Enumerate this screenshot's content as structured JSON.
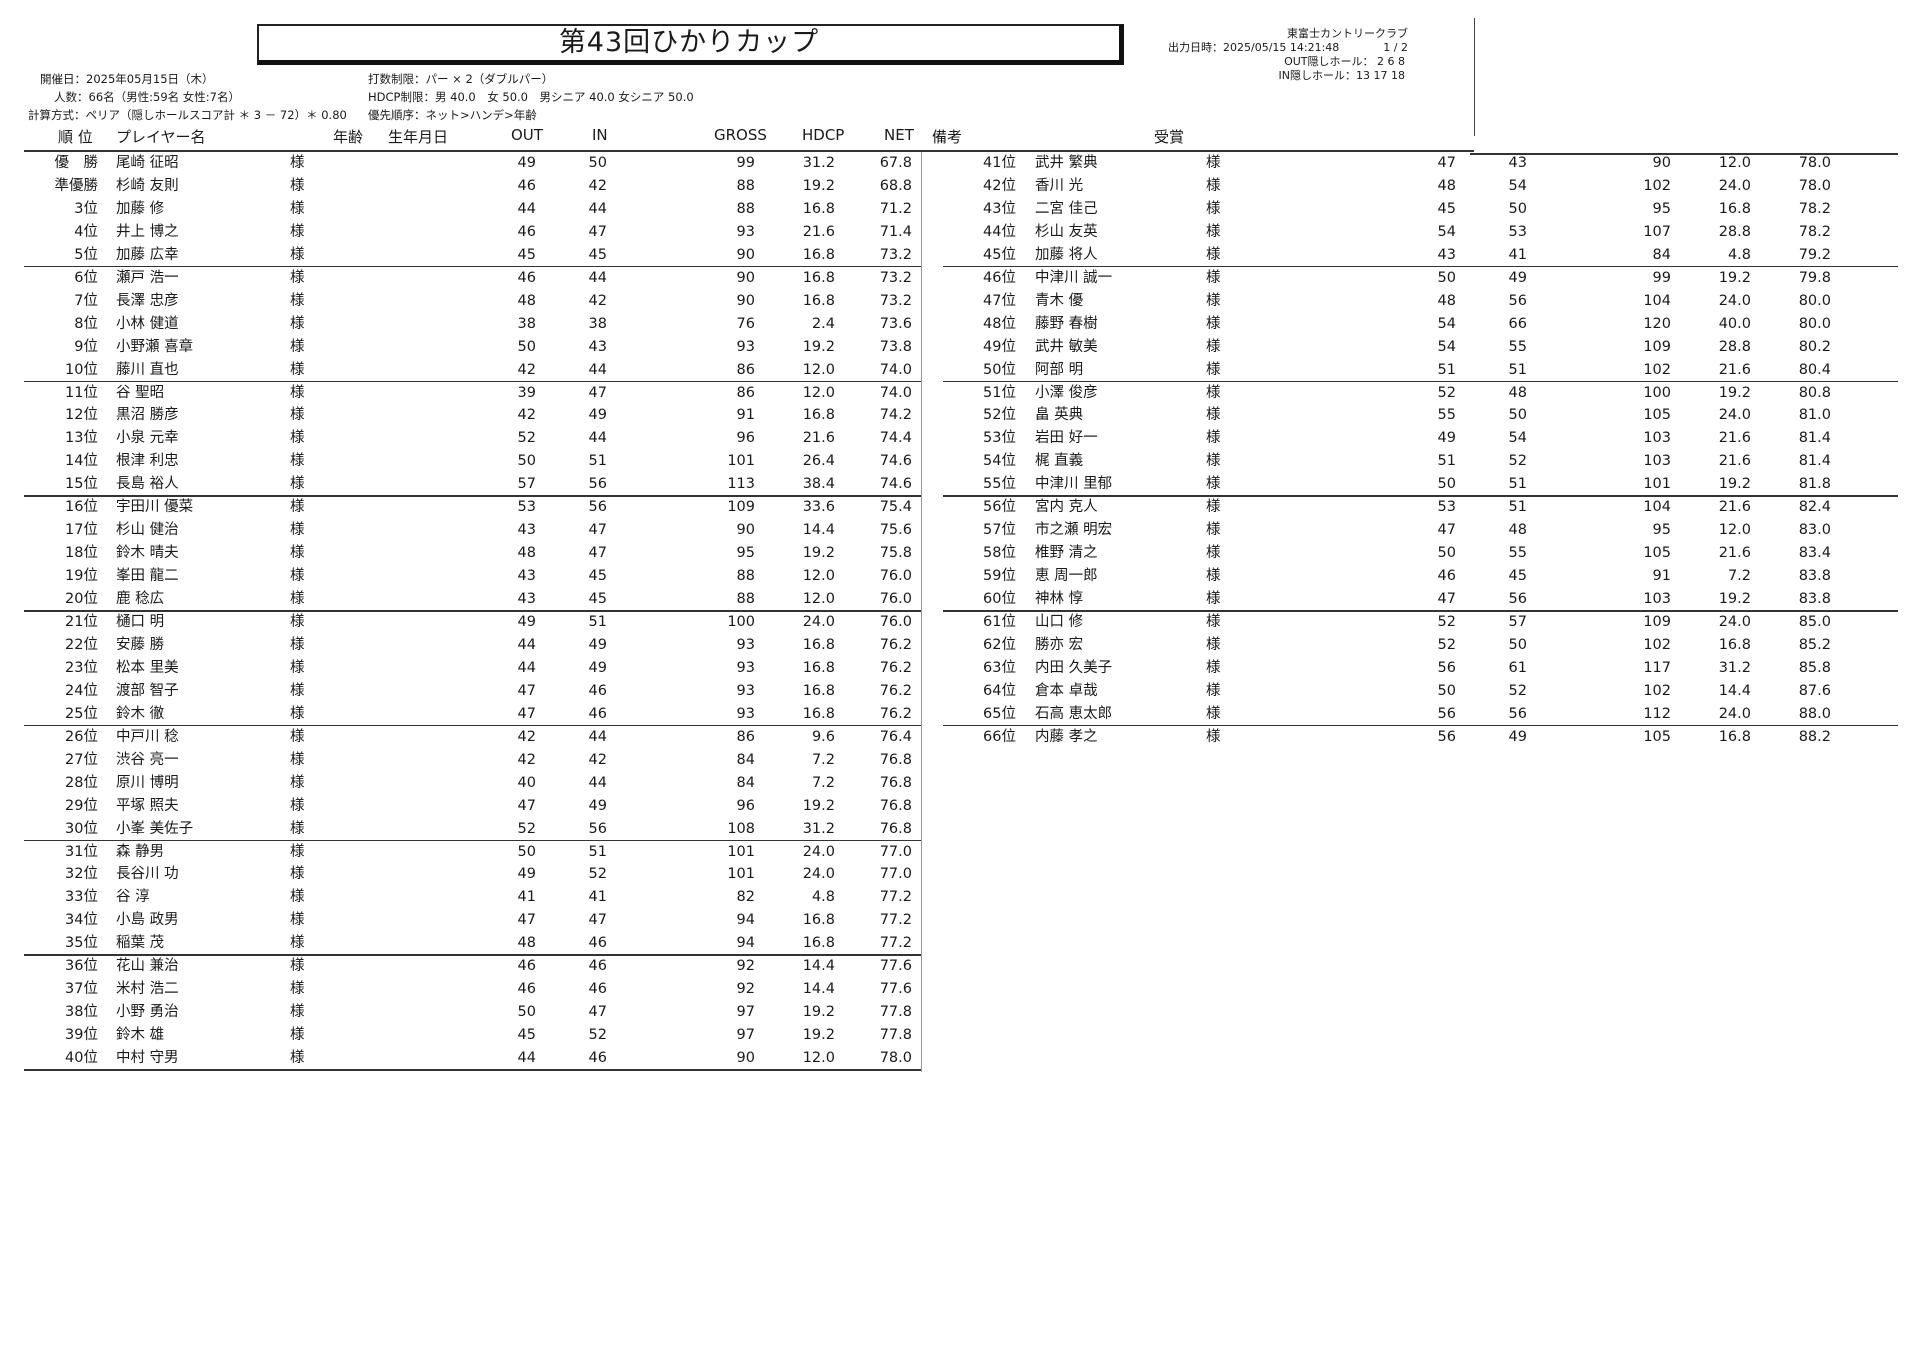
{
  "title": "第43回ひかりカップ",
  "info": {
    "date": "開催日：2025年05月15日（木）",
    "count": "人数：66名（男性:59名 女性:7名）",
    "calc": "計算方式：ペリア（隠しホールスコア計 ＊ 3 － 72）＊ 0.80",
    "stroke_limit": "打数制限：パー × 2（ダブルパー）",
    "hdcp_limit": "HDCP制限：男 40.0　女 50.0　男シニア 40.0 女シニア 50.0",
    "priority": "優先順序：ネット>ハンデ>年齢"
  },
  "club": {
    "name": "東富士カントリークラブ",
    "output_time": "出力日時：2025/05/15 14:21:48",
    "page": "1 / 2",
    "out_hidden": "OUT隠しホール：  2   6   8",
    "in_hidden": "IN隠しホール：13  17  18"
  },
  "columns": {
    "rank": "順 位",
    "player": "プレイヤー名",
    "age": "年齢",
    "birth": "生年月日",
    "out": "OUT",
    "in": "IN",
    "gross": "GROSS",
    "hdcp": "HDCP",
    "net": "NET",
    "remarks": "備考",
    "award": "受賞"
  },
  "honorific": "様",
  "players": [
    [
      "優　勝",
      "尾崎 征昭",
      "49",
      "50",
      "99",
      "31.2",
      "67.8"
    ],
    [
      "準優勝",
      "杉崎 友則",
      "46",
      "42",
      "88",
      "19.2",
      "68.8"
    ],
    [
      "3位",
      "加藤 修",
      "44",
      "44",
      "88",
      "16.8",
      "71.2"
    ],
    [
      "4位",
      "井上 博之",
      "46",
      "47",
      "93",
      "21.6",
      "71.4"
    ],
    [
      "5位",
      "加藤 広幸",
      "45",
      "45",
      "90",
      "16.8",
      "73.2"
    ],
    [
      "6位",
      "瀬戸 浩一",
      "46",
      "44",
      "90",
      "16.8",
      "73.2"
    ],
    [
      "7位",
      "長澤 忠彦",
      "48",
      "42",
      "90",
      "16.8",
      "73.2"
    ],
    [
      "8位",
      "小林 健道",
      "38",
      "38",
      "76",
      "2.4",
      "73.6"
    ],
    [
      "9位",
      "小野瀬 喜章",
      "50",
      "43",
      "93",
      "19.2",
      "73.8"
    ],
    [
      "10位",
      "藤川 直也",
      "42",
      "44",
      "86",
      "12.0",
      "74.0"
    ],
    [
      "11位",
      "谷 聖昭",
      "39",
      "47",
      "86",
      "12.0",
      "74.0"
    ],
    [
      "12位",
      "黒沼 勝彦",
      "42",
      "49",
      "91",
      "16.8",
      "74.2"
    ],
    [
      "13位",
      "小泉 元幸",
      "52",
      "44",
      "96",
      "21.6",
      "74.4"
    ],
    [
      "14位",
      "根津 利忠",
      "50",
      "51",
      "101",
      "26.4",
      "74.6"
    ],
    [
      "15位",
      "長島 裕人",
      "57",
      "56",
      "113",
      "38.4",
      "74.6"
    ],
    [
      "16位",
      "宇田川 優菜",
      "53",
      "56",
      "109",
      "33.6",
      "75.4"
    ],
    [
      "17位",
      "杉山 健治",
      "43",
      "47",
      "90",
      "14.4",
      "75.6"
    ],
    [
      "18位",
      "鈴木 晴夫",
      "48",
      "47",
      "95",
      "19.2",
      "75.8"
    ],
    [
      "19位",
      "峯田 龍二",
      "43",
      "45",
      "88",
      "12.0",
      "76.0"
    ],
    [
      "20位",
      "鹿 稔広",
      "43",
      "45",
      "88",
      "12.0",
      "76.0"
    ],
    [
      "21位",
      "樋口 明",
      "49",
      "51",
      "100",
      "24.0",
      "76.0"
    ],
    [
      "22位",
      "安藤 勝",
      "44",
      "49",
      "93",
      "16.8",
      "76.2"
    ],
    [
      "23位",
      "松本 里美",
      "44",
      "49",
      "93",
      "16.8",
      "76.2"
    ],
    [
      "24位",
      "渡部 智子",
      "47",
      "46",
      "93",
      "16.8",
      "76.2"
    ],
    [
      "25位",
      "鈴木 徹",
      "47",
      "46",
      "93",
      "16.8",
      "76.2"
    ],
    [
      "26位",
      "中戸川 稔",
      "42",
      "44",
      "86",
      "9.6",
      "76.4"
    ],
    [
      "27位",
      "渋谷 亮一",
      "42",
      "42",
      "84",
      "7.2",
      "76.8"
    ],
    [
      "28位",
      "原川 博明",
      "40",
      "44",
      "84",
      "7.2",
      "76.8"
    ],
    [
      "29位",
      "平塚 照夫",
      "47",
      "49",
      "96",
      "19.2",
      "76.8"
    ],
    [
      "30位",
      "小峯 美佐子",
      "52",
      "56",
      "108",
      "31.2",
      "76.8"
    ],
    [
      "31位",
      "森 静男",
      "50",
      "51",
      "101",
      "24.0",
      "77.0"
    ],
    [
      "32位",
      "長谷川 功",
      "49",
      "52",
      "101",
      "24.0",
      "77.0"
    ],
    [
      "33位",
      "谷 淳",
      "41",
      "41",
      "82",
      "4.8",
      "77.2"
    ],
    [
      "34位",
      "小島 政男",
      "47",
      "47",
      "94",
      "16.8",
      "77.2"
    ],
    [
      "35位",
      "稲葉 茂",
      "48",
      "46",
      "94",
      "16.8",
      "77.2"
    ],
    [
      "36位",
      "花山 兼治",
      "46",
      "46",
      "92",
      "14.4",
      "77.6"
    ],
    [
      "37位",
      "米村 浩二",
      "46",
      "46",
      "92",
      "14.4",
      "77.6"
    ],
    [
      "38位",
      "小野 勇治",
      "50",
      "47",
      "97",
      "19.2",
      "77.8"
    ],
    [
      "39位",
      "鈴木 雄",
      "45",
      "52",
      "97",
      "19.2",
      "77.8"
    ],
    [
      "40位",
      "中村 守男",
      "44",
      "46",
      "90",
      "12.0",
      "78.0"
    ],
    [
      "41位",
      "武井 繁典",
      "47",
      "43",
      "90",
      "12.0",
      "78.0"
    ],
    [
      "42位",
      "香川 光",
      "48",
      "54",
      "102",
      "24.0",
      "78.0"
    ],
    [
      "43位",
      "二宮 佳己",
      "45",
      "50",
      "95",
      "16.8",
      "78.2"
    ],
    [
      "44位",
      "杉山 友英",
      "54",
      "53",
      "107",
      "28.8",
      "78.2"
    ],
    [
      "45位",
      "加藤 将人",
      "43",
      "41",
      "84",
      "4.8",
      "79.2"
    ],
    [
      "46位",
      "中津川 誠一",
      "50",
      "49",
      "99",
      "19.2",
      "79.8"
    ],
    [
      "47位",
      "青木 優",
      "48",
      "56",
      "104",
      "24.0",
      "80.0"
    ],
    [
      "48位",
      "藤野 春樹",
      "54",
      "66",
      "120",
      "40.0",
      "80.0"
    ],
    [
      "49位",
      "武井 敏美",
      "54",
      "55",
      "109",
      "28.8",
      "80.2"
    ],
    [
      "50位",
      "阿部 明",
      "51",
      "51",
      "102",
      "21.6",
      "80.4"
    ],
    [
      "51位",
      "小澤 俊彦",
      "52",
      "48",
      "100",
      "19.2",
      "80.8"
    ],
    [
      "52位",
      "畠 英典",
      "55",
      "50",
      "105",
      "24.0",
      "81.0"
    ],
    [
      "53位",
      "岩田 好一",
      "49",
      "54",
      "103",
      "21.6",
      "81.4"
    ],
    [
      "54位",
      "梶 直義",
      "51",
      "52",
      "103",
      "21.6",
      "81.4"
    ],
    [
      "55位",
      "中津川 里郁",
      "50",
      "51",
      "101",
      "19.2",
      "81.8"
    ],
    [
      "56位",
      "宮内 克人",
      "53",
      "51",
      "104",
      "21.6",
      "82.4"
    ],
    [
      "57位",
      "市之瀬 明宏",
      "47",
      "48",
      "95",
      "12.0",
      "83.0"
    ],
    [
      "58位",
      "椎野 清之",
      "50",
      "55",
      "105",
      "21.6",
      "83.4"
    ],
    [
      "59位",
      "恵 周一郎",
      "46",
      "45",
      "91",
      "7.2",
      "83.8"
    ],
    [
      "60位",
      "神林 惇",
      "47",
      "56",
      "103",
      "19.2",
      "83.8"
    ],
    [
      "61位",
      "山口 修",
      "52",
      "57",
      "109",
      "24.0",
      "85.0"
    ],
    [
      "62位",
      "勝亦 宏",
      "52",
      "50",
      "102",
      "16.8",
      "85.2"
    ],
    [
      "63位",
      "内田 久美子",
      "56",
      "61",
      "117",
      "31.2",
      "85.8"
    ],
    [
      "64位",
      "倉本 卓哉",
      "50",
      "52",
      "102",
      "14.4",
      "87.6"
    ],
    [
      "65位",
      "石高 恵太郎",
      "56",
      "56",
      "112",
      "24.0",
      "88.0"
    ],
    [
      "66位",
      "内藤 孝之",
      "56",
      "49",
      "105",
      "16.8",
      "88.2"
    ]
  ]
}
